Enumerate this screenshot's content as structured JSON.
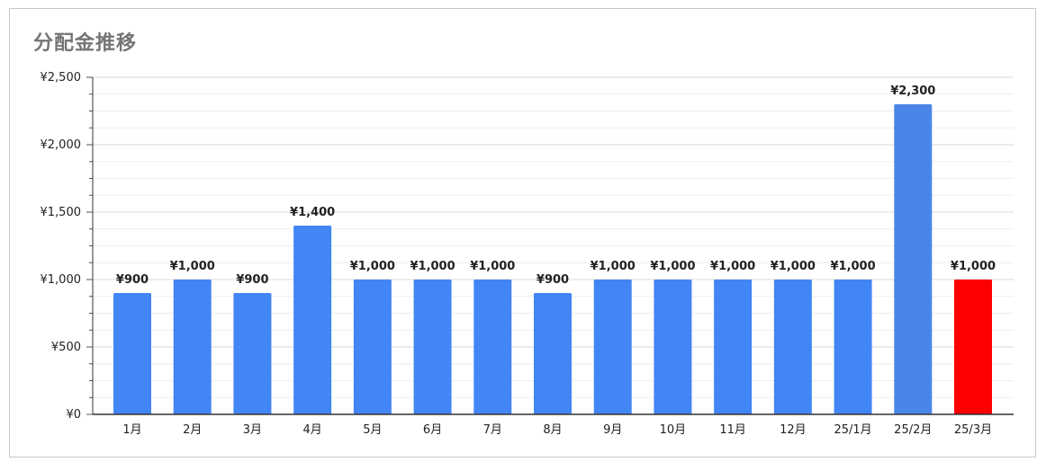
{
  "chart_data": {
    "type": "bar",
    "title": "分配金推移",
    "xlabel": "",
    "ylabel": "",
    "categories": [
      "1月",
      "2月",
      "3月",
      "4月",
      "5月",
      "6月",
      "7月",
      "8月",
      "9月",
      "10月",
      "11月",
      "12月",
      "25/1月",
      "25/2月",
      "25/3月"
    ],
    "values": [
      900,
      1000,
      900,
      1400,
      1000,
      1000,
      1000,
      900,
      1000,
      1000,
      1000,
      1000,
      1000,
      2300,
      1000
    ],
    "data_labels": [
      "¥900",
      "¥1,000",
      "¥900",
      "¥1,400",
      "¥1,000",
      "¥1,000",
      "¥1,000",
      "¥900",
      "¥1,000",
      "¥1,000",
      "¥1,000",
      "¥1,000",
      "¥1,000",
      "¥2,300",
      "¥1,000"
    ],
    "bar_colors": [
      "#4285f4",
      "#4285f4",
      "#4285f4",
      "#4285f4",
      "#4285f4",
      "#4285f4",
      "#4285f4",
      "#4285f4",
      "#4285f4",
      "#4285f4",
      "#4285f4",
      "#4285f4",
      "#4285f4",
      "#4a86e8",
      "#ff0000"
    ],
    "ylim": [
      0,
      2500
    ],
    "yticks": [
      0,
      500,
      1000,
      1500,
      2000,
      2500
    ],
    "ytick_labels": [
      "¥0",
      "¥500",
      "¥1,000",
      "¥1,500",
      "¥2,000",
      "¥2,500"
    ],
    "minor_ticks_per_major": 3,
    "grid": true,
    "legend": "none"
  }
}
